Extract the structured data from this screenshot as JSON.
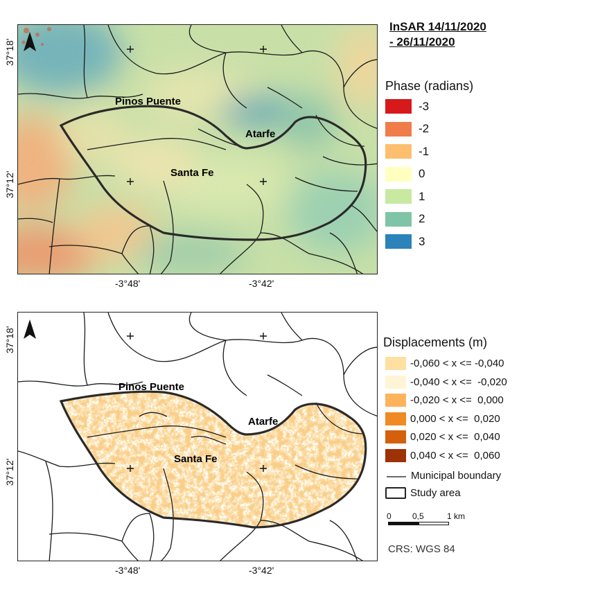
{
  "title_line1": "InSAR  14/11/2020",
  "title_line2": "- 26/11/2020",
  "top_map": {
    "lat_ticks": [
      "37°18'",
      "37°12'"
    ],
    "lon_ticks": [
      "-3°48'",
      "-3°42'"
    ],
    "places": [
      "Pinos Puente",
      "Atarfe",
      "Santa Fe"
    ]
  },
  "bottom_map": {
    "lat_ticks": [
      "37°18'",
      "37°12'"
    ],
    "lon_ticks": [
      "-3°48'",
      "-3°42'"
    ],
    "places": [
      "Pinos Puente",
      "Atarfe",
      "Santa Fe"
    ]
  },
  "phase_legend": {
    "title": "Phase (radians)",
    "items": [
      {
        "label": "-3",
        "color": "#d7191c"
      },
      {
        "label": "-2",
        "color": "#f07c4a"
      },
      {
        "label": "-1",
        "color": "#fdbf6f"
      },
      {
        "label": "0",
        "color": "#ffffbf"
      },
      {
        "label": "1",
        "color": "#c7e9a0"
      },
      {
        "label": "2",
        "color": "#80c4a8"
      },
      {
        "label": "3",
        "color": "#2b83ba"
      }
    ]
  },
  "displacement_legend": {
    "title": "Displacements (m)",
    "items": [
      {
        "label": "-0,060 < x <= -0,040",
        "color": "#fee0a0"
      },
      {
        "label": "-0,040 < x <=  -0,020",
        "color": "#fff5d6"
      },
      {
        "label": "-0,020 < x <=  0,000",
        "color": "#fdb35c"
      },
      {
        "label": "0,000 < x <=  0,020",
        "color": "#f08a24"
      },
      {
        "label": "0,020 < x <=  0,040",
        "color": "#d4600e"
      },
      {
        "label": "0,040 < x <=  0,060",
        "color": "#9c3206"
      }
    ],
    "municipal_boundary": "Municipal boundary",
    "study_area": "Study area"
  },
  "scale_bar": {
    "labels": [
      "0",
      "0,5",
      "1 km"
    ]
  },
  "crs": "CRS: WGS 84",
  "icons": {
    "north_arrow": "north-arrow-icon",
    "graticule_cross": "plus-icon"
  }
}
